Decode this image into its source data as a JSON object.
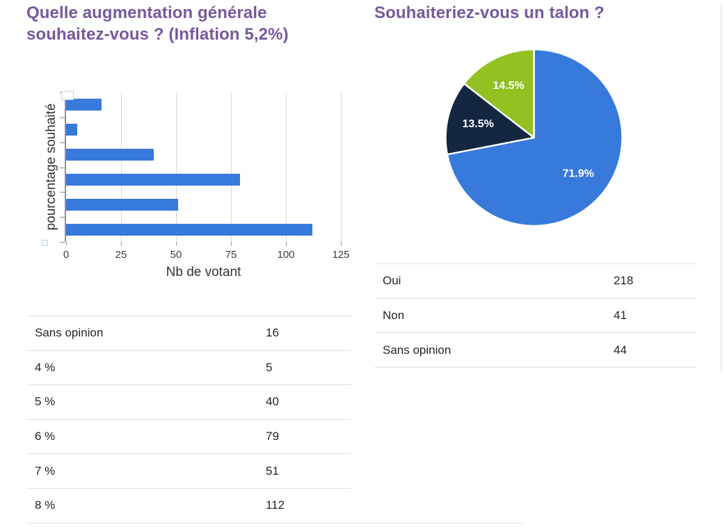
{
  "left_panel": {
    "title": "Quelle augmentation générale souhaitez-vous ? (Inflation 5,2%)",
    "table": {
      "rows": [
        {
          "label": "Sans opinion",
          "value": "16"
        },
        {
          "label": "4 %",
          "value": "5"
        },
        {
          "label": "5 %",
          "value": "40"
        },
        {
          "label": "6 %",
          "value": "79"
        },
        {
          "label": "7 %",
          "value": "51"
        },
        {
          "label": "8 %",
          "value": "112"
        }
      ]
    }
  },
  "right_panel": {
    "title": "Souhaiteriez-vous un talon ?",
    "table": {
      "rows": [
        {
          "label": "Oui",
          "value": "218"
        },
        {
          "label": "Non",
          "value": "41"
        },
        {
          "label": "Sans opinion",
          "value": "44"
        }
      ]
    }
  },
  "chart_data": [
    {
      "type": "bar",
      "orientation": "horizontal",
      "title": "Quelle augmentation générale souhaitez-vous ? (Inflation 5,2%)",
      "categories": [
        "Sans opinion",
        "4 %",
        "5 %",
        "6 %",
        "7 %",
        "8 %"
      ],
      "values": [
        16,
        5,
        40,
        79,
        51,
        112
      ],
      "xlabel": "Nb de votant",
      "ylabel": "pourcentage souhaité",
      "xlim": [
        0,
        125
      ],
      "xticks": [
        0,
        25,
        50,
        75,
        100,
        125
      ],
      "grid": true,
      "legend": false,
      "bar_color": "#3879dc"
    },
    {
      "type": "pie",
      "title": "Souhaiteriez-vous un talon ?",
      "labels": [
        "Oui",
        "Non",
        "Sans opinion"
      ],
      "values": [
        218,
        41,
        44
      ],
      "percent_labels": [
        "71.9%",
        "13.5%",
        "14.5%"
      ],
      "colors": [
        "#3879dc",
        "#132740",
        "#92c121"
      ],
      "start_angle": "top",
      "direction": "clockwise",
      "slice_border_color": "#ffffff",
      "label_color": "#ffffff",
      "legend": false
    }
  ],
  "theme": {
    "title_color": "#76599d",
    "text_color": "#212529",
    "axis_text_color": "#3c3c3c",
    "axis_color": "#909090",
    "grid_color": "#d9d9d9",
    "table_border_color": "#dee2e6",
    "background": "#ffffff"
  }
}
